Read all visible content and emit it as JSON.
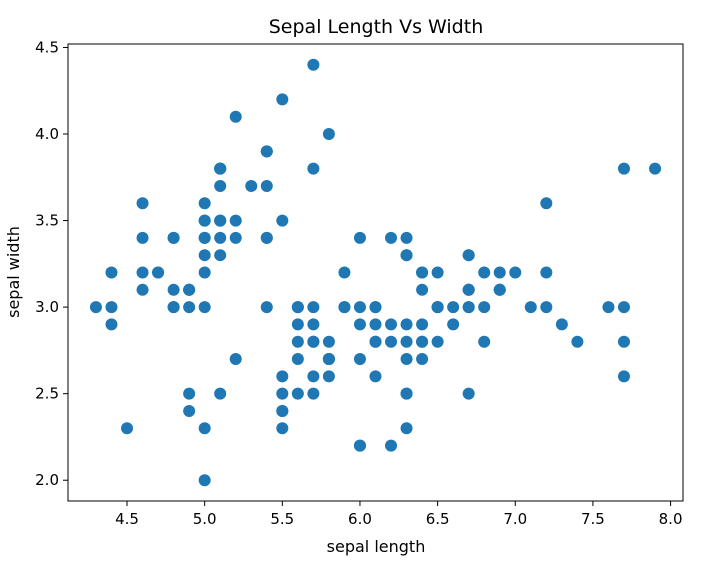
{
  "chart_data": {
    "type": "scatter",
    "title": "Sepal Length Vs Width",
    "xlabel": "sepal length",
    "ylabel": "sepal width",
    "xlim": [
      4.12,
      8.08
    ],
    "ylim": [
      1.88,
      4.52
    ],
    "xticks": [
      4.5,
      5.0,
      5.5,
      6.0,
      6.5,
      7.0,
      7.5,
      8.0
    ],
    "xtick_labels": [
      "4.5",
      "5.0",
      "5.5",
      "6.0",
      "6.5",
      "7.0",
      "7.5",
      "8.0"
    ],
    "yticks": [
      2.0,
      2.5,
      3.0,
      3.5,
      4.0,
      4.5
    ],
    "ytick_labels": [
      "2.0",
      "2.5",
      "3.0",
      "3.5",
      "4.0",
      "4.5"
    ],
    "grid": false,
    "marker_color": "#1f77b4",
    "x": [
      5.1,
      4.9,
      4.7,
      4.6,
      5.0,
      5.4,
      4.6,
      5.0,
      4.4,
      4.9,
      5.4,
      4.8,
      4.8,
      4.3,
      5.8,
      5.7,
      5.4,
      5.1,
      5.7,
      5.1,
      5.4,
      5.1,
      4.6,
      5.1,
      4.8,
      5.0,
      5.0,
      5.2,
      5.2,
      4.7,
      4.8,
      5.4,
      5.2,
      5.5,
      4.9,
      5.0,
      5.5,
      4.9,
      4.4,
      5.1,
      5.0,
      4.5,
      4.4,
      5.0,
      5.1,
      4.8,
      5.1,
      4.6,
      5.3,
      5.0,
      7.0,
      6.4,
      6.9,
      5.5,
      6.5,
      5.7,
      6.3,
      4.9,
      6.6,
      5.2,
      5.0,
      5.9,
      6.0,
      6.1,
      5.6,
      6.7,
      5.6,
      5.8,
      6.2,
      5.6,
      5.9,
      6.1,
      6.3,
      6.1,
      6.4,
      6.6,
      6.8,
      6.7,
      6.0,
      5.7,
      5.5,
      5.5,
      5.8,
      6.0,
      5.4,
      6.0,
      6.7,
      6.3,
      5.6,
      5.5,
      5.5,
      6.1,
      5.8,
      5.0,
      5.6,
      5.7,
      5.7,
      6.2,
      5.1,
      5.7,
      6.3,
      5.8,
      7.1,
      6.3,
      6.5,
      7.6,
      4.9,
      7.3,
      6.7,
      7.2,
      6.5,
      6.4,
      6.8,
      5.7,
      5.8,
      6.4,
      6.5,
      7.7,
      7.7,
      6.0,
      6.9,
      5.6,
      7.7,
      6.3,
      6.7,
      7.2,
      6.2,
      6.1,
      6.4,
      7.2,
      7.4,
      7.9,
      6.4,
      6.3,
      6.1,
      7.7,
      6.3,
      6.4,
      6.0,
      6.9,
      6.7,
      6.9,
      5.8,
      6.8,
      6.7,
      6.7,
      6.3,
      6.5,
      6.2,
      5.9
    ],
    "y": [
      3.5,
      3.0,
      3.2,
      3.1,
      3.6,
      3.9,
      3.4,
      3.4,
      2.9,
      3.1,
      3.7,
      3.4,
      3.0,
      3.0,
      4.0,
      4.4,
      3.9,
      3.5,
      3.8,
      3.8,
      3.4,
      3.7,
      3.6,
      3.3,
      3.4,
      3.0,
      3.4,
      3.5,
      3.4,
      3.2,
      3.1,
      3.4,
      4.1,
      4.2,
      3.1,
      3.2,
      3.5,
      3.1,
      3.0,
      3.4,
      3.5,
      2.3,
      3.2,
      3.5,
      3.8,
      3.0,
      3.8,
      3.2,
      3.7,
      3.3,
      3.2,
      3.2,
      3.1,
      2.3,
      2.8,
      2.8,
      3.3,
      2.4,
      2.9,
      2.7,
      2.0,
      3.0,
      2.2,
      2.9,
      2.9,
      3.1,
      3.0,
      2.7,
      2.2,
      2.5,
      3.2,
      2.8,
      2.5,
      2.8,
      2.9,
      3.0,
      2.8,
      3.0,
      2.9,
      2.6,
      2.4,
      2.4,
      2.7,
      2.7,
      3.0,
      3.4,
      3.1,
      2.3,
      3.0,
      2.5,
      2.6,
      3.0,
      2.6,
      2.3,
      2.7,
      3.0,
      2.9,
      2.9,
      2.5,
      2.8,
      3.3,
      2.7,
      3.0,
      2.9,
      3.0,
      3.0,
      2.5,
      2.9,
      2.5,
      3.6,
      3.2,
      2.7,
      3.0,
      2.5,
      2.8,
      3.2,
      3.0,
      3.8,
      2.6,
      2.2,
      3.2,
      2.8,
      2.8,
      2.7,
      3.3,
      3.2,
      2.8,
      3.0,
      2.8,
      3.0,
      2.8,
      3.8,
      2.8,
      2.8,
      2.6,
      3.0,
      3.4,
      3.1,
      3.0,
      3.1,
      3.1,
      3.1,
      2.7,
      3.2,
      3.3,
      3.0,
      2.5,
      3.0,
      3.4,
      3.0
    ]
  }
}
